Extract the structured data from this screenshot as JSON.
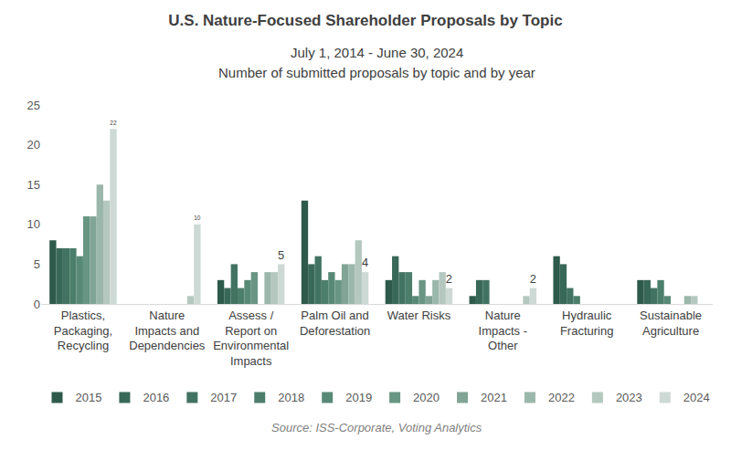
{
  "chart_data": {
    "type": "bar",
    "title": "U.S. Nature-Focused Shareholder Proposals by Topic",
    "subtitle": [
      "July 1, 2014 - June 30, 2024",
      "Number of submitted proposals by topic and by year"
    ],
    "source": "Source: ISS-Corporate, Voting Analytics",
    "categories": [
      "Plastics, Packaging, Recycling",
      "Nature Impacts and Dependencies",
      "Assess / Report on Environmental Impacts",
      "Palm Oil and Deforestation",
      "Water Risks",
      "Nature Impacts - Other",
      "Hydraulic Fracturing",
      "Sustainable Agriculture"
    ],
    "series": [
      {
        "name": "2015",
        "color": "#2d5a4b",
        "values": [
          8,
          0,
          3,
          13,
          3,
          1,
          6,
          3
        ]
      },
      {
        "name": "2016",
        "color": "#386858",
        "values": [
          7,
          0,
          2,
          5,
          6,
          3,
          5,
          3
        ]
      },
      {
        "name": "2017",
        "color": "#427362",
        "values": [
          7,
          0,
          5,
          6,
          4,
          3,
          2,
          2
        ]
      },
      {
        "name": "2018",
        "color": "#4c7e6c",
        "values": [
          7,
          0,
          2,
          3,
          4,
          0,
          1,
          3
        ]
      },
      {
        "name": "2019",
        "color": "#588977",
        "values": [
          6,
          0,
          3,
          4,
          1,
          0,
          0,
          1
        ]
      },
      {
        "name": "2020",
        "color": "#689584",
        "values": [
          11,
          0,
          4,
          3,
          3,
          0,
          0,
          0
        ]
      },
      {
        "name": "2021",
        "color": "#80a495",
        "values": [
          11,
          0,
          0,
          5,
          1,
          0,
          0,
          0
        ]
      },
      {
        "name": "2022",
        "color": "#9bb7ab",
        "values": [
          15,
          0,
          4,
          5,
          3,
          0,
          0,
          1
        ]
      },
      {
        "name": "2023",
        "color": "#b5c8c0",
        "values": [
          13,
          1,
          4,
          8,
          4,
          1,
          0,
          1
        ]
      },
      {
        "name": "2024",
        "color": "#cdd9d4",
        "values": [
          22,
          10,
          5,
          4,
          2,
          2,
          0,
          0
        ],
        "data_labels": true,
        "value_labels": [
          "22",
          "10",
          "5",
          "4",
          "2",
          "2",
          null,
          null
        ]
      }
    ],
    "ylim": [
      0,
      25
    ],
    "yticks": [
      0,
      5,
      10,
      15,
      20,
      25
    ],
    "grid": false,
    "legend": "bottom"
  }
}
